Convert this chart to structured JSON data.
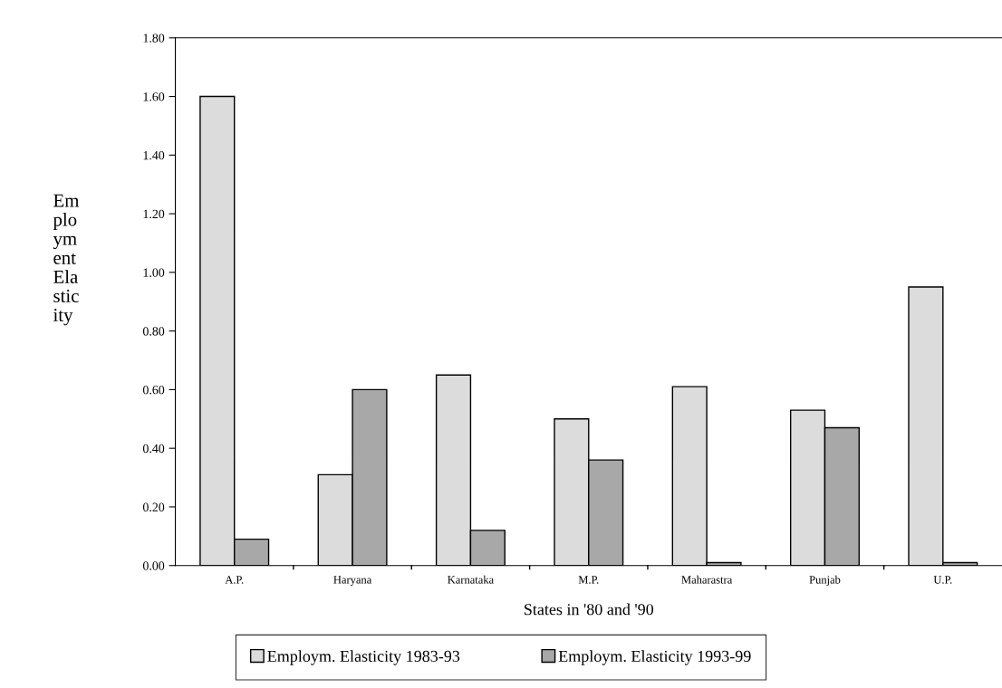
{
  "chart_data": {
    "type": "bar",
    "xlabel": "States in '80 and '90",
    "ylabel": "Employment Elasticity",
    "categories": [
      "A.P.",
      "Haryana",
      "Karnataka",
      "M.P.",
      "Maharastra",
      "Punjab",
      "U.P."
    ],
    "series": [
      {
        "name": "Employm. Elasticity 1983-93",
        "color": "#dcdcdc",
        "values": [
          1.6,
          0.31,
          0.65,
          0.5,
          0.61,
          0.53,
          0.95
        ]
      },
      {
        "name": "Employm. Elasticity 1993-99",
        "color": "#a8a8a8",
        "values": [
          0.09,
          0.6,
          0.12,
          0.36,
          0.01,
          0.47,
          0.01
        ]
      }
    ],
    "ylim": [
      0,
      1.8
    ],
    "yticks": [
      {
        "value": 0,
        "label": "0.00"
      },
      {
        "value": 0.2,
        "label": "0.20"
      },
      {
        "value": 0.4,
        "label": "0.40"
      },
      {
        "value": 0.6,
        "label": "0.60"
      },
      {
        "value": 0.8,
        "label": "0.80"
      },
      {
        "value": 1.0,
        "label": "1.00"
      },
      {
        "value": 1.2,
        "label": "1.20"
      },
      {
        "value": 1.4,
        "label": "1.40"
      },
      {
        "value": 1.6,
        "label": "1.60"
      },
      {
        "value": 1.8,
        "label": "1.80"
      }
    ],
    "grid": false,
    "legend": "bottom"
  }
}
